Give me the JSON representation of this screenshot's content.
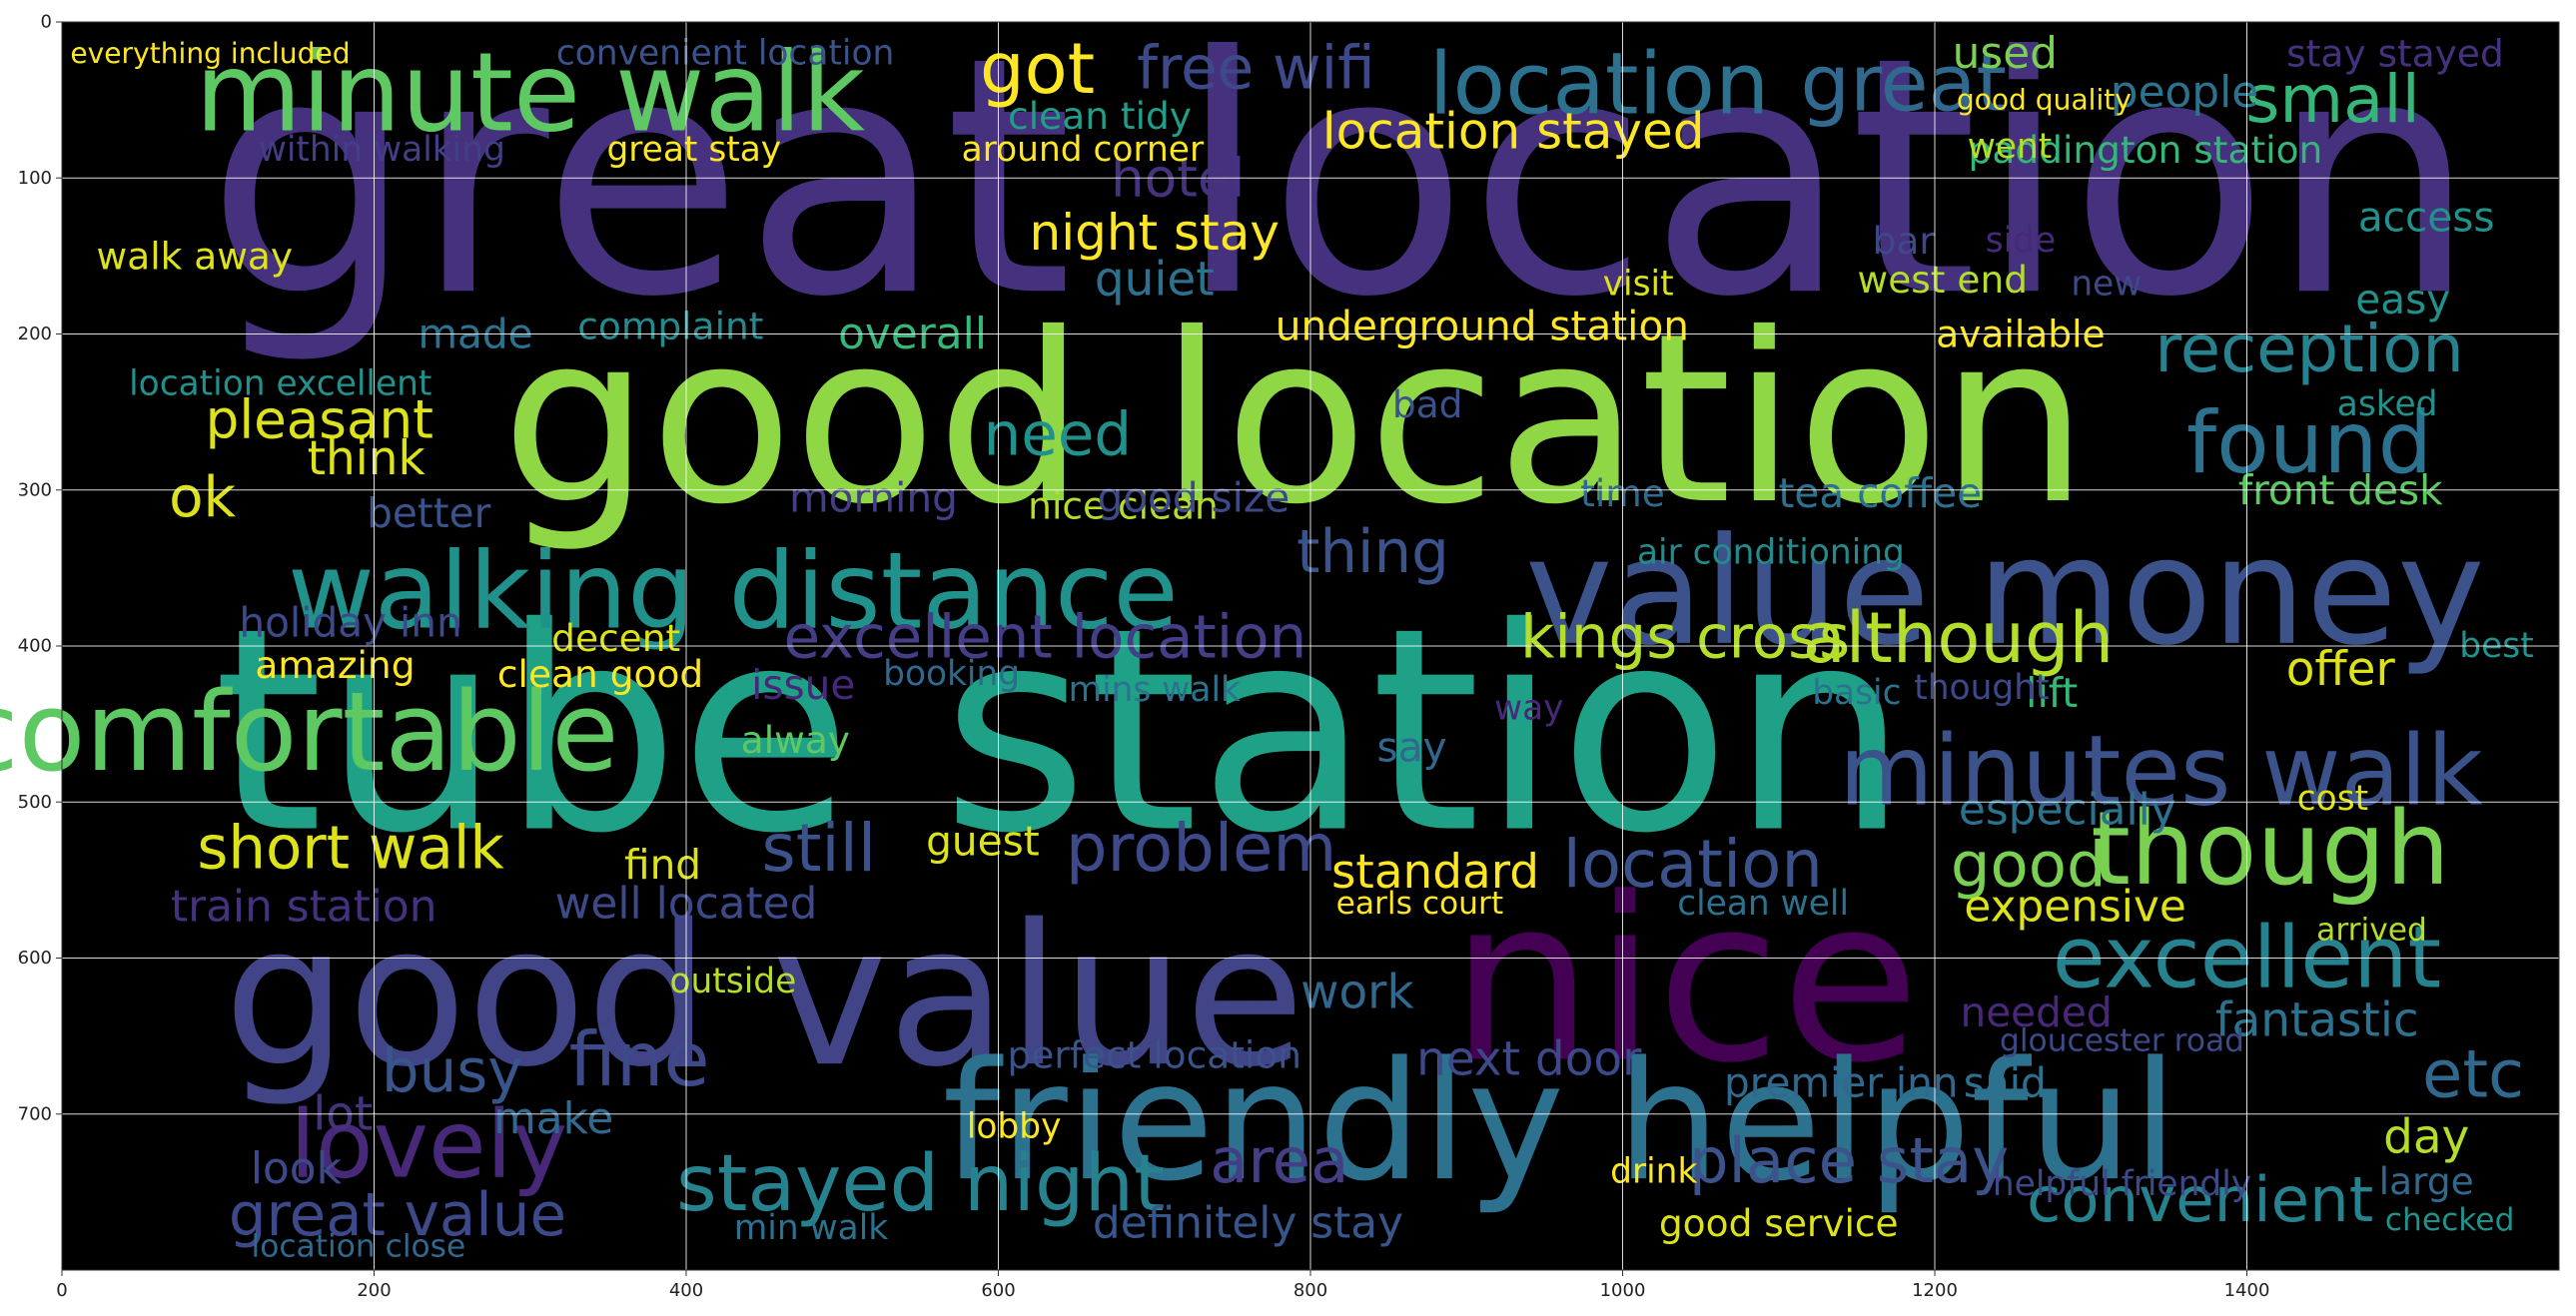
{
  "chart_data": {
    "type": "wordcloud",
    "title": "",
    "xlabel": "",
    "ylabel": "",
    "xlim": [
      0,
      1600
    ],
    "ylim": [
      800,
      0
    ],
    "grid": true,
    "xticks": [
      0,
      200,
      400,
      600,
      800,
      1000,
      1200,
      1400
    ],
    "yticks": [
      0,
      100,
      200,
      300,
      400,
      500,
      600,
      700
    ],
    "background": "#000000",
    "words": [
      {
        "text": "great location",
        "x": 820,
        "y": 100,
        "size": 210,
        "color": "#46317e"
      },
      {
        "text": "tube station",
        "x": 640,
        "y": 455,
        "size": 180,
        "color": "#1fa187"
      },
      {
        "text": "good location",
        "x": 790,
        "y": 255,
        "size": 150,
        "color": "#8fd744"
      },
      {
        "text": "good value",
        "x": 450,
        "y": 625,
        "size": 125,
        "color": "#414487"
      },
      {
        "text": "nice",
        "x": 1040,
        "y": 615,
        "size": 145,
        "color": "#440154"
      },
      {
        "text": "friendly helpful",
        "x": 960,
        "y": 705,
        "size": 105,
        "color": "#2c728e"
      },
      {
        "text": "value money",
        "x": 1245,
        "y": 365,
        "size": 95,
        "color": "#3b528b"
      },
      {
        "text": "clean comfortable",
        "x": 40,
        "y": 455,
        "size": 70,
        "color": "#5ec962"
      },
      {
        "text": "minute walk",
        "x": 300,
        "y": 45,
        "size": 70,
        "color": "#5ec962"
      },
      {
        "text": "walking distance",
        "x": 430,
        "y": 365,
        "size": 68,
        "color": "#21918c"
      },
      {
        "text": "minutes walk",
        "x": 1345,
        "y": 480,
        "size": 62,
        "color": "#3b528b"
      },
      {
        "text": "though",
        "x": 1415,
        "y": 530,
        "size": 65,
        "color": "#7ad151"
      },
      {
        "text": "location",
        "x": 985,
        "y": 40,
        "size": 55,
        "color": "#2c728e"
      },
      {
        "text": "great",
        "x": 1180,
        "y": 40,
        "size": 50,
        "color": "#31688e"
      },
      {
        "text": "excellent",
        "x": 1400,
        "y": 600,
        "size": 55,
        "color": "#26828e"
      },
      {
        "text": "lovely",
        "x": 235,
        "y": 720,
        "size": 60,
        "color": "#482878"
      },
      {
        "text": "found",
        "x": 1440,
        "y": 270,
        "size": 55,
        "color": "#2c728e"
      },
      {
        "text": "stayed night",
        "x": 550,
        "y": 745,
        "size": 50,
        "color": "#26828e"
      },
      {
        "text": "great value",
        "x": 215,
        "y": 765,
        "size": 38,
        "color": "#3e4989"
      },
      {
        "text": "kings cross",
        "x": 1040,
        "y": 395,
        "size": 38,
        "color": "#b5de2b"
      },
      {
        "text": "although",
        "x": 1215,
        "y": 395,
        "size": 45,
        "color": "#b5de2b"
      },
      {
        "text": "reception",
        "x": 1440,
        "y": 210,
        "size": 42,
        "color": "#26828e"
      },
      {
        "text": "small",
        "x": 1455,
        "y": 50,
        "size": 42,
        "color": "#35b779"
      },
      {
        "text": "got",
        "x": 625,
        "y": 30,
        "size": 45,
        "color": "#fde725"
      },
      {
        "text": "free wifi",
        "x": 765,
        "y": 30,
        "size": 38,
        "color": "#3e4989"
      },
      {
        "text": "location stayed",
        "x": 930,
        "y": 70,
        "size": 32,
        "color": "#fde725"
      },
      {
        "text": "night stay",
        "x": 700,
        "y": 135,
        "size": 32,
        "color": "#fde725"
      },
      {
        "text": "hotel",
        "x": 715,
        "y": 100,
        "size": 34,
        "color": "#46337e"
      },
      {
        "text": "excellent location",
        "x": 630,
        "y": 395,
        "size": 38,
        "color": "#433e85"
      },
      {
        "text": "convenient",
        "x": 1370,
        "y": 755,
        "size": 40,
        "color": "#26828e"
      },
      {
        "text": "place stay",
        "x": 1145,
        "y": 730,
        "size": 40,
        "color": "#3b528b"
      },
      {
        "text": "short walk",
        "x": 185,
        "y": 530,
        "size": 38,
        "color": "#dde318"
      },
      {
        "text": "problem",
        "x": 730,
        "y": 530,
        "size": 42,
        "color": "#3e4989"
      },
      {
        "text": "still",
        "x": 485,
        "y": 530,
        "size": 42,
        "color": "#3b528b"
      },
      {
        "text": "fine",
        "x": 370,
        "y": 665,
        "size": 48,
        "color": "#3e4989"
      },
      {
        "text": "thing",
        "x": 840,
        "y": 340,
        "size": 38,
        "color": "#3b528b"
      },
      {
        "text": "area",
        "x": 780,
        "y": 730,
        "size": 40,
        "color": "#433e85"
      },
      {
        "text": "definitely stay",
        "x": 760,
        "y": 770,
        "size": 28,
        "color": "#39568c"
      },
      {
        "text": "good service",
        "x": 1100,
        "y": 770,
        "size": 24,
        "color": "#dde318"
      },
      {
        "text": "underground station",
        "x": 910,
        "y": 195,
        "size": 26,
        "color": "#fde725"
      },
      {
        "text": "overall",
        "x": 545,
        "y": 200,
        "size": 28,
        "color": "#35b779"
      },
      {
        "text": "complaint",
        "x": 390,
        "y": 195,
        "size": 24,
        "color": "#238a8d"
      },
      {
        "text": "pleasant",
        "x": 165,
        "y": 255,
        "size": 34,
        "color": "#dde318"
      },
      {
        "text": "ok",
        "x": 90,
        "y": 305,
        "size": 36,
        "color": "#dde318"
      },
      {
        "text": "think",
        "x": 195,
        "y": 280,
        "size": 30,
        "color": "#dde318"
      },
      {
        "text": "holiday inn",
        "x": 185,
        "y": 385,
        "size": 26,
        "color": "#3e4989"
      },
      {
        "text": "location excellent",
        "x": 140,
        "y": 232,
        "size": 22,
        "color": "#21918c"
      },
      {
        "text": "walk away",
        "x": 85,
        "y": 150,
        "size": 24,
        "color": "#dde318"
      },
      {
        "text": "quiet",
        "x": 700,
        "y": 165,
        "size": 30,
        "color": "#2c728e"
      },
      {
        "text": "clean tidy",
        "x": 665,
        "y": 60,
        "size": 24,
        "color": "#1f9e89"
      },
      {
        "text": "used",
        "x": 1245,
        "y": 20,
        "size": 28,
        "color": "#7ad151"
      },
      {
        "text": "people",
        "x": 1360,
        "y": 45,
        "size": 28,
        "color": "#2c728e"
      },
      {
        "text": "access",
        "x": 1515,
        "y": 125,
        "size": 26,
        "color": "#21918c"
      },
      {
        "text": "easy",
        "x": 1500,
        "y": 178,
        "size": 26,
        "color": "#21918c"
      },
      {
        "text": "available",
        "x": 1255,
        "y": 200,
        "size": 24,
        "color": "#fde725"
      },
      {
        "text": "need",
        "x": 638,
        "y": 265,
        "size": 38,
        "color": "#21918c"
      },
      {
        "text": "nice clean",
        "x": 680,
        "y": 310,
        "size": 24,
        "color": "#b5de2b"
      },
      {
        "text": "morning",
        "x": 520,
        "y": 305,
        "size": 26,
        "color": "#433e85"
      },
      {
        "text": "good size",
        "x": 725,
        "y": 305,
        "size": 26,
        "color": "#3e4989"
      },
      {
        "text": "tea coffee",
        "x": 1165,
        "y": 302,
        "size": 26,
        "color": "#2c728e"
      },
      {
        "text": "front desk",
        "x": 1460,
        "y": 300,
        "size": 26,
        "color": "#5ec962"
      },
      {
        "text": "air conditioning",
        "x": 1095,
        "y": 340,
        "size": 22,
        "color": "#238a8d"
      },
      {
        "text": "time",
        "x": 1000,
        "y": 302,
        "size": 24,
        "color": "#31688e"
      },
      {
        "text": "offer",
        "x": 1460,
        "y": 415,
        "size": 30,
        "color": "#dde318"
      },
      {
        "text": "best",
        "x": 1560,
        "y": 400,
        "size": 22,
        "color": "#21918c"
      },
      {
        "text": "issue",
        "x": 475,
        "y": 425,
        "size": 26,
        "color": "#482878"
      },
      {
        "text": "amazing",
        "x": 175,
        "y": 412,
        "size": 24,
        "color": "#fde725"
      },
      {
        "text": "clean good",
        "x": 345,
        "y": 418,
        "size": 24,
        "color": "#fde725"
      },
      {
        "text": "decent",
        "x": 355,
        "y": 395,
        "size": 24,
        "color": "#dde318"
      },
      {
        "text": "lift",
        "x": 1275,
        "y": 430,
        "size": 26,
        "color": "#35b779"
      },
      {
        "text": "alway",
        "x": 470,
        "y": 460,
        "size": 24,
        "color": "#5ec962"
      },
      {
        "text": "say",
        "x": 865,
        "y": 465,
        "size": 26,
        "color": "#31688e"
      },
      {
        "text": "way",
        "x": 940,
        "y": 440,
        "size": 22,
        "color": "#482878"
      },
      {
        "text": "especially",
        "x": 1285,
        "y": 505,
        "size": 28,
        "color": "#2c728e"
      },
      {
        "text": "location",
        "x": 1045,
        "y": 540,
        "size": 42,
        "color": "#3b528b"
      },
      {
        "text": "good",
        "x": 1260,
        "y": 540,
        "size": 40,
        "color": "#7ad151"
      },
      {
        "text": "standard",
        "x": 880,
        "y": 545,
        "size": 30,
        "color": "#fde725"
      },
      {
        "text": "guest",
        "x": 590,
        "y": 525,
        "size": 26,
        "color": "#dde318"
      },
      {
        "text": "well located",
        "x": 400,
        "y": 565,
        "size": 28,
        "color": "#3e4989"
      },
      {
        "text": "train station",
        "x": 155,
        "y": 567,
        "size": 28,
        "color": "#46317e"
      },
      {
        "text": "find",
        "x": 385,
        "y": 540,
        "size": 26,
        "color": "#dde318"
      },
      {
        "text": "earls court",
        "x": 870,
        "y": 565,
        "size": 20,
        "color": "#fde725"
      },
      {
        "text": "expensive",
        "x": 1290,
        "y": 567,
        "size": 28,
        "color": "#dde318"
      },
      {
        "text": "clean well",
        "x": 1090,
        "y": 565,
        "size": 22,
        "color": "#2c728e"
      },
      {
        "text": "work",
        "x": 830,
        "y": 622,
        "size": 30,
        "color": "#31688e"
      },
      {
        "text": "busy",
        "x": 250,
        "y": 673,
        "size": 38,
        "color": "#39568c"
      },
      {
        "text": "lot",
        "x": 180,
        "y": 700,
        "size": 30,
        "color": "#46337e"
      },
      {
        "text": "next door",
        "x": 940,
        "y": 665,
        "size": 30,
        "color": "#3e4989"
      },
      {
        "text": "perfect location",
        "x": 700,
        "y": 662,
        "size": 24,
        "color": "#3b528b"
      },
      {
        "text": "premier inn",
        "x": 1140,
        "y": 680,
        "size": 26,
        "color": "#31688e"
      },
      {
        "text": "fantastic",
        "x": 1445,
        "y": 640,
        "size": 30,
        "color": "#2c728e"
      },
      {
        "text": "etc",
        "x": 1545,
        "y": 675,
        "size": 42,
        "color": "#31688e"
      },
      {
        "text": "day",
        "x": 1515,
        "y": 715,
        "size": 30,
        "color": "#b5de2b"
      },
      {
        "text": "large",
        "x": 1515,
        "y": 743,
        "size": 24,
        "color": "#31688e"
      },
      {
        "text": "helpful friendly",
        "x": 1320,
        "y": 745,
        "size": 22,
        "color": "#3e4989"
      },
      {
        "text": "make",
        "x": 315,
        "y": 703,
        "size": 28,
        "color": "#31688e"
      },
      {
        "text": "look",
        "x": 150,
        "y": 735,
        "size": 28,
        "color": "#3e4989"
      },
      {
        "text": "drink",
        "x": 1020,
        "y": 737,
        "size": 22,
        "color": "#fde725"
      },
      {
        "text": "lobby",
        "x": 610,
        "y": 708,
        "size": 22,
        "color": "#fde725"
      },
      {
        "text": "outside",
        "x": 430,
        "y": 615,
        "size": 22,
        "color": "#b5de2b"
      },
      {
        "text": "paddington station",
        "x": 1335,
        "y": 82,
        "size": 24,
        "color": "#35b779"
      },
      {
        "text": "good quality",
        "x": 1270,
        "y": 50,
        "size": 18,
        "color": "#fde725"
      },
      {
        "text": "great stay",
        "x": 405,
        "y": 82,
        "size": 22,
        "color": "#fde725"
      },
      {
        "text": "within walking",
        "x": 205,
        "y": 82,
        "size": 22,
        "color": "#433e85"
      },
      {
        "text": "around corner",
        "x": 654,
        "y": 82,
        "size": 22,
        "color": "#fde725"
      },
      {
        "text": "convenient location",
        "x": 425,
        "y": 20,
        "size": 22,
        "color": "#3b528b"
      },
      {
        "text": "everything included",
        "x": 95,
        "y": 20,
        "size": 18,
        "color": "#fde725"
      },
      {
        "text": "stay stayed",
        "x": 1495,
        "y": 20,
        "size": 24,
        "color": "#46317e"
      },
      {
        "text": "went",
        "x": 1248,
        "y": 80,
        "size": 22,
        "color": "#b5de2b"
      },
      {
        "text": "bar",
        "x": 1180,
        "y": 140,
        "size": 24,
        "color": "#3e4989"
      },
      {
        "text": "side",
        "x": 1255,
        "y": 140,
        "size": 22,
        "color": "#482878"
      },
      {
        "text": "west end",
        "x": 1205,
        "y": 165,
        "size": 24,
        "color": "#b5de2b"
      },
      {
        "text": "new",
        "x": 1310,
        "y": 168,
        "size": 22,
        "color": "#3e4989"
      },
      {
        "text": "visit",
        "x": 1010,
        "y": 168,
        "size": 22,
        "color": "#dde318"
      },
      {
        "text": "better",
        "x": 235,
        "y": 315,
        "size": 26,
        "color": "#3b528b"
      },
      {
        "text": "made",
        "x": 265,
        "y": 200,
        "size": 26,
        "color": "#2c728e"
      },
      {
        "text": "bad",
        "x": 875,
        "y": 245,
        "size": 24,
        "color": "#3b528b"
      },
      {
        "text": "asked",
        "x": 1490,
        "y": 245,
        "size": 22,
        "color": "#21918c"
      },
      {
        "text": "booking",
        "x": 570,
        "y": 418,
        "size": 22,
        "color": "#31688e"
      },
      {
        "text": "mins walk",
        "x": 700,
        "y": 428,
        "size": 22,
        "color": "#2c728e"
      },
      {
        "text": "thought",
        "x": 1230,
        "y": 427,
        "size": 22,
        "color": "#3e4989"
      },
      {
        "text": "basic",
        "x": 1150,
        "y": 430,
        "size": 22,
        "color": "#2c728e"
      },
      {
        "text": "cost",
        "x": 1455,
        "y": 498,
        "size": 22,
        "color": "#dde318"
      },
      {
        "text": "gloucester road",
        "x": 1320,
        "y": 653,
        "size": 20,
        "color": "#3e4989"
      },
      {
        "text": "said",
        "x": 1245,
        "y": 680,
        "size": 26,
        "color": "#2c728e"
      },
      {
        "text": "needed",
        "x": 1265,
        "y": 635,
        "size": 26,
        "color": "#482878"
      },
      {
        "text": "min walk",
        "x": 480,
        "y": 773,
        "size": 22,
        "color": "#2c728e"
      },
      {
        "text": "location close",
        "x": 190,
        "y": 785,
        "size": 20,
        "color": "#31688e"
      },
      {
        "text": "checked",
        "x": 1530,
        "y": 768,
        "size": 20,
        "color": "#21918c"
      },
      {
        "text": "arrived",
        "x": 1480,
        "y": 582,
        "size": 20,
        "color": "#b5de2b"
      }
    ]
  }
}
